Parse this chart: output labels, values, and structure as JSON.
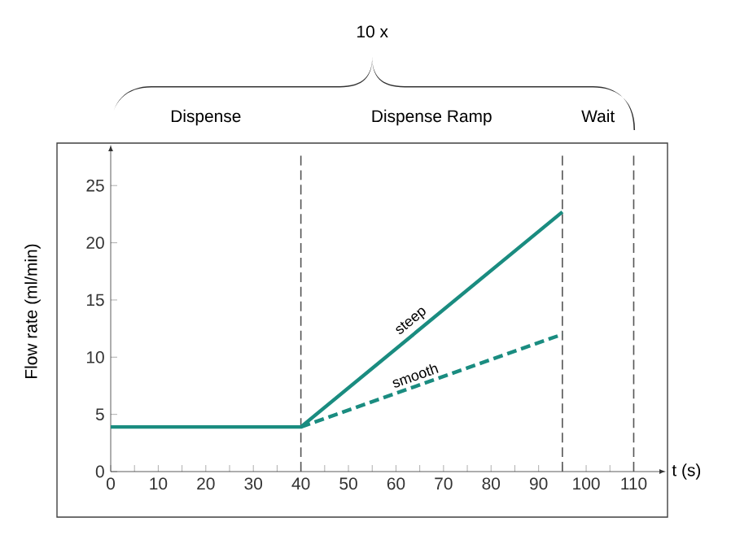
{
  "chart_data": {
    "type": "line",
    "xlabel": "t (s)",
    "ylabel": "Flow rate (ml/min)",
    "xlim": [
      0,
      115.4
    ],
    "ylim": [
      0,
      28
    ],
    "xticks": [
      0,
      10,
      20,
      30,
      40,
      50,
      60,
      70,
      80,
      90,
      100,
      110
    ],
    "yticks": [
      0,
      5,
      10,
      15,
      20,
      25
    ],
    "series": [
      {
        "name": "steep",
        "color": "#1a8c80",
        "x": [
          0,
          40,
          95
        ],
        "values": [
          3.9,
          3.9,
          22.7
        ],
        "line_style": "solid"
      },
      {
        "name": "smooth",
        "color": "#1a8c80",
        "x": [
          40,
          95
        ],
        "values": [
          3.9,
          12
        ],
        "line_style": "dashed"
      }
    ],
    "ref_lines": [
      {
        "axis": "x",
        "value": 40,
        "color": "#555555",
        "line_style": "dashed"
      },
      {
        "axis": "x",
        "value": 95,
        "color": "#555555",
        "line_style": "dashed"
      },
      {
        "axis": "x",
        "value": 110,
        "color": "#555555",
        "line_style": "dashed"
      }
    ],
    "annotations": [
      "Dispense",
      "Dispense Ramp",
      "Wait",
      "10 x"
    ]
  }
}
